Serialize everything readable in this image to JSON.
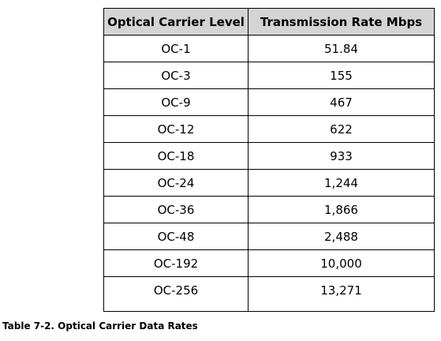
{
  "table": {
    "headers": [
      "Optical Carrier Level",
      "Transmission Rate Mbps"
    ],
    "rows": [
      [
        "OC-1",
        "51.84"
      ],
      [
        "OC-3",
        "155"
      ],
      [
        "OC-9",
        "467"
      ],
      [
        "OC-12",
        "622"
      ],
      [
        "OC-18",
        "933"
      ],
      [
        "OC-24",
        "1,244"
      ],
      [
        "OC-36",
        "1,866"
      ],
      [
        "OC-48",
        "2,488"
      ],
      [
        "OC-192",
        "10,000"
      ],
      [
        "OC-256",
        "13,271"
      ]
    ]
  },
  "caption": "Table 7-2. Optical Carrier Data Rates"
}
